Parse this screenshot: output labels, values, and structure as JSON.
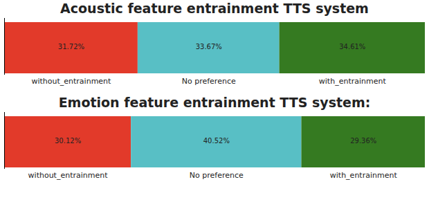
{
  "chart_data": [
    {
      "type": "bar",
      "title": "Acoustic feature entrainment TTS system",
      "orientation": "horizontal",
      "stacked": true,
      "data_labels": true,
      "tick_labels": false,
      "xlim": [
        0,
        100
      ],
      "series": [
        {
          "name": "without_entrainment",
          "color": "#e23a2a",
          "values": [
            31.72
          ],
          "value_labels": [
            "31.72%"
          ]
        },
        {
          "name": "No preference",
          "color": "#58bfc5",
          "values": [
            33.67
          ],
          "value_labels": [
            "33.67%"
          ]
        },
        {
          "name": "with_entrainment",
          "color": "#357a21",
          "values": [
            34.61
          ],
          "value_labels": [
            "34.61%"
          ]
        }
      ]
    },
    {
      "type": "bar",
      "title": "Emotion feature entrainment TTS system:",
      "orientation": "horizontal",
      "stacked": true,
      "data_labels": true,
      "tick_labels": false,
      "xlim": [
        0,
        100
      ],
      "series": [
        {
          "name": "without_entrainment",
          "color": "#e23a2a",
          "values": [
            30.12
          ],
          "value_labels": [
            "30.12%"
          ]
        },
        {
          "name": "No preference",
          "color": "#58bfc5",
          "values": [
            40.52
          ],
          "value_labels": [
            "40.52%"
          ]
        },
        {
          "name": "with_entrainment",
          "color": "#357a21",
          "values": [
            29.36
          ],
          "value_labels": [
            "29.36%"
          ]
        }
      ]
    }
  ]
}
